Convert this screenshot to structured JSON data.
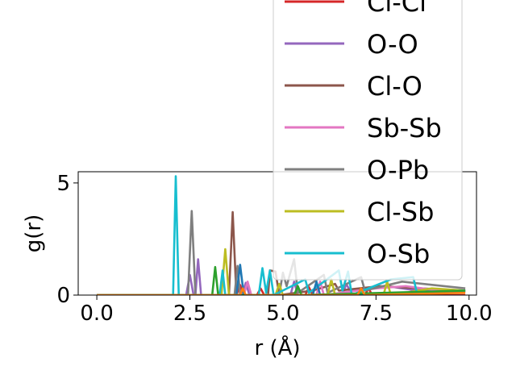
{
  "chart_data": {
    "type": "line",
    "xlabel": "r (Å)",
    "ylabel": "g(r)",
    "xlim": [
      -0.5,
      10.2
    ],
    "ylim": [
      0,
      5.5
    ],
    "xticks": [
      "0.0",
      "2.5",
      "5.0",
      "7.5",
      "10.0"
    ],
    "xtick_values": [
      0,
      2.5,
      5,
      7.5,
      10
    ],
    "yticks": [
      "0",
      "5"
    ],
    "ytick_values": [
      0,
      5
    ],
    "grid": false,
    "legend_position": "upper-right, extending above the axes",
    "series": [
      {
        "name": "Cl-Cl",
        "color": "#d62728",
        "points": [
          [
            0,
            0
          ],
          [
            3.75,
            0
          ],
          [
            3.85,
            0.45
          ],
          [
            3.95,
            0
          ],
          [
            4.3,
            0
          ],
          [
            4.4,
            0.3
          ],
          [
            4.5,
            0
          ],
          [
            5.6,
            0
          ],
          [
            5.7,
            0.35
          ],
          [
            5.8,
            0
          ],
          [
            7.2,
            0
          ],
          [
            7.3,
            0.3
          ],
          [
            7.4,
            0
          ],
          [
            9.9,
            0
          ]
        ]
      },
      {
        "name": "O-O",
        "color": "#9467bd",
        "points": [
          [
            0,
            0
          ],
          [
            2.4,
            0
          ],
          [
            2.5,
            0.9
          ],
          [
            2.6,
            0
          ],
          [
            2.65,
            0
          ],
          [
            2.72,
            1.6
          ],
          [
            2.8,
            0
          ],
          [
            3.9,
            0
          ],
          [
            4.0,
            0.55
          ],
          [
            4.1,
            0
          ],
          [
            5.2,
            0
          ],
          [
            5.3,
            0.6
          ],
          [
            5.4,
            0
          ],
          [
            6.6,
            0
          ],
          [
            6.7,
            0.5
          ],
          [
            6.8,
            0.2
          ],
          [
            7.8,
            0.4
          ],
          [
            8.6,
            0.2
          ],
          [
            9.9,
            0.15
          ]
        ]
      },
      {
        "name": "Cl-O",
        "color": "#8c564b",
        "points": [
          [
            0,
            0
          ],
          [
            3.55,
            0
          ],
          [
            3.65,
            3.7
          ],
          [
            3.75,
            0
          ],
          [
            4.6,
            0
          ],
          [
            4.65,
            1.1
          ],
          [
            4.8,
            1.05
          ],
          [
            4.9,
            0
          ],
          [
            5.8,
            0.2
          ],
          [
            6.4,
            0.5
          ],
          [
            6.5,
            0.2
          ],
          [
            7.6,
            0.4
          ],
          [
            8.7,
            0.3
          ],
          [
            9.9,
            0.2
          ]
        ]
      },
      {
        "name": "Sb-Sb",
        "color": "#e377c2",
        "points": [
          [
            0,
            0
          ],
          [
            3.95,
            0
          ],
          [
            4.05,
            0.6
          ],
          [
            4.15,
            0
          ],
          [
            5.9,
            0
          ],
          [
            6.0,
            0.6
          ],
          [
            6.1,
            0
          ],
          [
            7.0,
            0.2
          ],
          [
            7.5,
            0.3
          ],
          [
            8.3,
            0.4
          ],
          [
            9.2,
            0.2
          ],
          [
            9.9,
            0.2
          ]
        ]
      },
      {
        "name": "O-Pb",
        "color": "#7f7f7f",
        "points": [
          [
            0,
            0
          ],
          [
            2.45,
            0
          ],
          [
            2.55,
            3.75
          ],
          [
            2.65,
            0
          ],
          [
            3.7,
            0
          ],
          [
            3.78,
            1.3
          ],
          [
            3.85,
            0
          ],
          [
            4.9,
            0
          ],
          [
            5.0,
            1.0
          ],
          [
            5.1,
            0.4
          ],
          [
            5.3,
            1.6
          ],
          [
            5.4,
            0.1
          ],
          [
            6.1,
            0.9
          ],
          [
            6.2,
            0.1
          ],
          [
            7.1,
            0.8
          ],
          [
            7.2,
            0.2
          ],
          [
            8.2,
            0.6
          ],
          [
            9.9,
            0.3
          ]
        ]
      },
      {
        "name": "Cl-Sb",
        "color": "#bcbd22",
        "points": [
          [
            0,
            0
          ],
          [
            3.35,
            0
          ],
          [
            3.45,
            2.05
          ],
          [
            3.55,
            0
          ],
          [
            4.8,
            0
          ],
          [
            4.9,
            0.5
          ],
          [
            5.0,
            0
          ],
          [
            6.2,
            0
          ],
          [
            6.3,
            0.7
          ],
          [
            6.4,
            0
          ],
          [
            7.7,
            0
          ],
          [
            7.8,
            0.6
          ],
          [
            7.9,
            0
          ],
          [
            9.0,
            0.3
          ],
          [
            9.9,
            0.2
          ]
        ]
      },
      {
        "name": "O-Sb",
        "color": "#17becf",
        "points": [
          [
            0,
            0
          ],
          [
            2.05,
            0
          ],
          [
            2.12,
            5.3
          ],
          [
            2.2,
            0
          ],
          [
            3.3,
            0
          ],
          [
            3.38,
            1.1
          ],
          [
            3.45,
            0
          ],
          [
            4.35,
            0
          ],
          [
            4.45,
            1.2
          ],
          [
            4.55,
            0.1
          ],
          [
            4.65,
            1.1
          ],
          [
            4.75,
            0
          ],
          [
            5.6,
            0.7
          ],
          [
            5.7,
            0.1
          ],
          [
            6.5,
            1.1
          ],
          [
            6.6,
            0.2
          ],
          [
            6.75,
            1.05
          ],
          [
            6.85,
            0
          ],
          [
            7.9,
            0.7
          ],
          [
            8.5,
            0.8
          ],
          [
            8.6,
            0.1
          ],
          [
            9.9,
            0.2
          ]
        ]
      },
      {
        "color": "#1f77b4",
        "points": [
          [
            0,
            0
          ],
          [
            3.75,
            0
          ],
          [
            3.85,
            1.35
          ],
          [
            3.95,
            0
          ],
          [
            5.8,
            0
          ],
          [
            5.9,
            0.6
          ],
          [
            6.0,
            0
          ],
          [
            9.9,
            0.15
          ]
        ]
      },
      {
        "color": "#2ca02c",
        "points": [
          [
            0,
            0
          ],
          [
            3.1,
            0
          ],
          [
            3.18,
            1.25
          ],
          [
            3.26,
            0
          ],
          [
            5.3,
            0
          ],
          [
            5.4,
            0.4
          ],
          [
            5.5,
            0
          ],
          [
            9.9,
            0.2
          ]
        ]
      },
      {
        "color": "#ff7f0e",
        "points": [
          [
            0,
            0
          ],
          [
            3.85,
            0
          ],
          [
            3.92,
            0.3
          ],
          [
            4.0,
            0
          ],
          [
            7.0,
            0
          ],
          [
            7.1,
            0.3
          ],
          [
            7.2,
            0
          ],
          [
            9.9,
            0.1
          ]
        ]
      }
    ]
  }
}
